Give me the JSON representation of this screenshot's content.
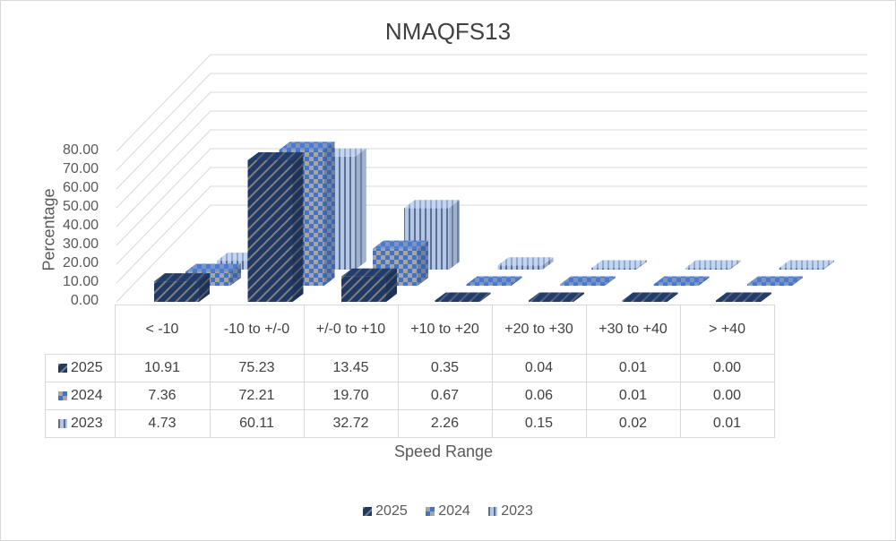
{
  "chart_data": {
    "type": "bar",
    "title": "NMAQFS13",
    "xlabel": "Speed Range",
    "ylabel": "Percentage",
    "ylim": [
      0,
      80
    ],
    "yticks": [
      "0.00",
      "10.00",
      "20.00",
      "30.00",
      "40.00",
      "50.00",
      "60.00",
      "70.00",
      "80.00"
    ],
    "categories": [
      "< -10",
      "-10 to +/-0",
      "+/-0 to +10",
      "+10 to +20",
      "+20 to +30",
      "+30 to +40",
      "> +40"
    ],
    "series": [
      {
        "name": "2025",
        "values": [
          10.91,
          75.23,
          13.45,
          0.35,
          0.04,
          0.01,
          0.0
        ],
        "display": [
          "10.91",
          "75.23",
          "13.45",
          "0.35",
          "0.04",
          "0.01",
          "0.00"
        ],
        "color": "#203864",
        "pattern": "diagonal stripes"
      },
      {
        "name": "2024",
        "values": [
          7.36,
          72.21,
          19.7,
          0.67,
          0.06,
          0.01,
          0.0
        ],
        "display": [
          "7.36",
          "72.21",
          "19.70",
          "0.67",
          "0.06",
          "0.01",
          "0.00"
        ],
        "color": "#4472c4",
        "pattern": "checkerboard"
      },
      {
        "name": "2023",
        "values": [
          4.73,
          60.11,
          32.72,
          2.26,
          0.15,
          0.02,
          0.01
        ],
        "display": [
          "4.73",
          "60.11",
          "32.72",
          "2.26",
          "0.15",
          "0.02",
          "0.01"
        ],
        "color": "#b4c7e7",
        "pattern": "vertical stripes"
      }
    ],
    "style": "3d-column",
    "grid": true,
    "legend_position": "bottom",
    "data_table": true
  }
}
